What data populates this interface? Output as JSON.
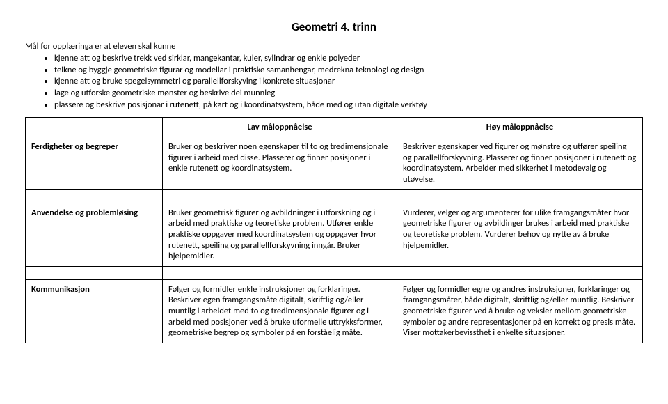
{
  "title": "Geometri 4. trinn",
  "goals_intro": "Mål for opplæringa er at eleven skal kunne",
  "goals": [
    "kjenne att og beskrive trekk ved sirklar, mangekantar, kuler, sylindrar og enkle polyeder",
    "teikne og byggje geometriske figurar og modellar i praktiske samanhengar, medrekna teknologi og design",
    "kjenne att og bruke spegelsymmetri og parallellforskyving i konkrete situasjonar",
    "lage og utforske geometriske mønster og beskrive dei munnleg",
    "plassere og beskrive posisjonar i rutenett, på kart og i koordinatsystem, både med og utan digitale verktøy"
  ],
  "headers": {
    "low": "Lav måloppnåelse",
    "high": "Høy måloppnåelse"
  },
  "rows": [
    {
      "label": "Ferdigheter og begreper",
      "low": "Bruker og beskriver noen egenskaper til to og tredimensjonale figurer i arbeid med disse. Plasserer og finner posisjoner i enkle rutenett og koordinatsystem.",
      "high": "Beskriver egenskaper ved figurer og mønstre og utfører speiling og parallellforskyvning. Plasserer og finner posisjoner i rutenett og koordinatsystem. Arbeider med sikkerhet i metodevalg og utøvelse."
    },
    {
      "label": "Anvendelse og problemløsing",
      "low": "Bruker geometrisk figurer og avbildninger i utforskning og i arbeid med praktiske og teoretiske problem. Utfører enkle praktiske oppgaver med koordinatsystem og oppgaver hvor rutenett, speiling og parallellforskyvning inngår. Bruker hjelpemidler.",
      "high": "Vurderer, velger og argumenterer for ulike framgangsmåter hvor geometriske figurer og avbildinger brukes i arbeid med praktiske og teoretiske problem. Vurderer behov og nytte av å bruke hjelpemidler."
    },
    {
      "label": "Kommunikasjon",
      "low": "Følger og formidler enkle instruksjoner og forklaringer. Beskriver egen framgangsmåte digitalt, skriftlig og/eller muntlig i arbeidet med to og tredimensjonale figurer og i arbeid med posisjoner ved å bruke uformelle uttrykksformer, geometriske begrep og symboler på en forståelig måte.",
      "high": "Følger og formidler egne og andres instruksjoner, forklaringer og framgangsmåter, både digitalt, skriftlig og/eller muntlig. Beskriver geometriske figurer ved å bruke og veksler mellom geometriske symboler og andre representasjoner på en korrekt og presis måte. Viser mottakerbevissthet i enkelte situasjoner."
    }
  ]
}
